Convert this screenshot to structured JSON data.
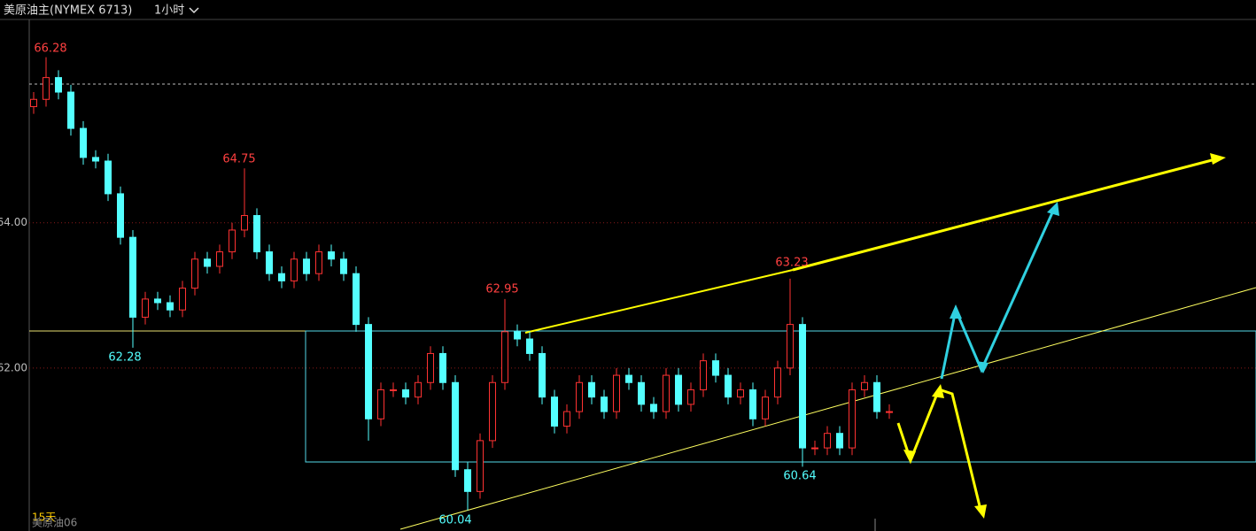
{
  "chart_data": {
    "type": "candlestick",
    "title": "美原油主(NYMEX 6713)",
    "timeframe": "1小时",
    "open": [
      65.6,
      65.7,
      66.0,
      65.8,
      65.3,
      64.9,
      64.85,
      64.4,
      63.8,
      62.7,
      62.95,
      62.9,
      62.8,
      63.1,
      63.5,
      63.4,
      63.6,
      63.9,
      64.1,
      63.6,
      63.3,
      63.2,
      63.5,
      63.3,
      63.6,
      63.5,
      63.3,
      62.6,
      61.3,
      61.7,
      61.7,
      61.6,
      61.8,
      62.2,
      61.8,
      60.6,
      60.3,
      61.0,
      61.8,
      62.5,
      62.4,
      62.2,
      61.6,
      61.2,
      61.4,
      61.8,
      61.6,
      61.4,
      61.9,
      61.8,
      61.5,
      61.4,
      61.9,
      61.5,
      61.7,
      62.1,
      61.9,
      61.6,
      61.7,
      61.3,
      61.6,
      62.0,
      62.6,
      60.9,
      60.9,
      61.1,
      60.9,
      61.7,
      61.8,
      61.4
    ],
    "high": [
      65.8,
      66.28,
      66.1,
      65.9,
      65.4,
      65.0,
      64.95,
      64.5,
      63.9,
      63.05,
      63.05,
      63.0,
      63.2,
      63.6,
      63.6,
      63.7,
      64.0,
      64.75,
      64.2,
      63.7,
      63.4,
      63.6,
      63.6,
      63.7,
      63.7,
      63.6,
      63.4,
      62.7,
      61.8,
      61.8,
      61.8,
      61.9,
      62.3,
      62.3,
      61.9,
      60.7,
      61.1,
      61.9,
      62.95,
      62.6,
      62.5,
      62.3,
      61.7,
      61.5,
      61.9,
      61.9,
      61.7,
      62.0,
      62.0,
      61.9,
      61.6,
      62.0,
      62.0,
      61.8,
      62.2,
      62.2,
      62.0,
      61.8,
      61.8,
      61.7,
      62.1,
      63.23,
      62.7,
      61.0,
      61.2,
      61.2,
      61.8,
      61.9,
      61.9,
      61.5
    ],
    "low": [
      65.5,
      65.6,
      65.7,
      65.2,
      64.8,
      64.75,
      64.3,
      63.7,
      62.28,
      62.6,
      62.8,
      62.7,
      62.7,
      63.0,
      63.3,
      63.3,
      63.5,
      63.8,
      63.5,
      63.2,
      63.1,
      63.1,
      63.2,
      63.2,
      63.4,
      63.2,
      62.5,
      61.0,
      61.2,
      61.6,
      61.5,
      61.5,
      61.7,
      61.7,
      60.5,
      60.04,
      60.2,
      60.9,
      61.7,
      62.3,
      62.1,
      61.5,
      61.1,
      61.1,
      61.3,
      61.5,
      61.3,
      61.3,
      61.7,
      61.4,
      61.3,
      61.3,
      61.4,
      61.4,
      61.6,
      61.8,
      61.5,
      61.5,
      61.2,
      61.2,
      61.5,
      61.9,
      60.64,
      60.8,
      60.8,
      60.8,
      60.8,
      61.6,
      61.3,
      61.3
    ],
    "close": [
      65.7,
      66.0,
      65.8,
      65.3,
      64.9,
      64.85,
      64.4,
      63.8,
      62.7,
      62.95,
      62.9,
      62.8,
      63.1,
      63.5,
      63.4,
      63.6,
      63.9,
      64.1,
      63.6,
      63.3,
      63.2,
      63.5,
      63.3,
      63.6,
      63.5,
      63.3,
      62.6,
      61.3,
      61.7,
      61.7,
      61.6,
      61.8,
      62.2,
      61.8,
      60.6,
      60.3,
      61.0,
      61.8,
      62.5,
      62.4,
      62.2,
      61.6,
      61.2,
      61.4,
      61.8,
      61.6,
      61.4,
      61.9,
      61.8,
      61.5,
      61.4,
      61.9,
      61.5,
      61.7,
      62.1,
      61.9,
      61.6,
      61.7,
      61.3,
      61.6,
      62.0,
      62.6,
      60.9,
      60.9,
      61.1,
      60.9,
      61.7,
      61.8,
      61.4,
      61.4
    ],
    "ylim": [
      59.78,
      66.8
    ],
    "yticks": [
      {
        "value": 64,
        "label": "64.00"
      },
      {
        "value": 62,
        "label": "62.00"
      }
    ],
    "grid": true,
    "up_color": "#ff3232",
    "down_color": "#54ffff",
    "range_label": "15天",
    "contract_label": "美原油06"
  }
}
